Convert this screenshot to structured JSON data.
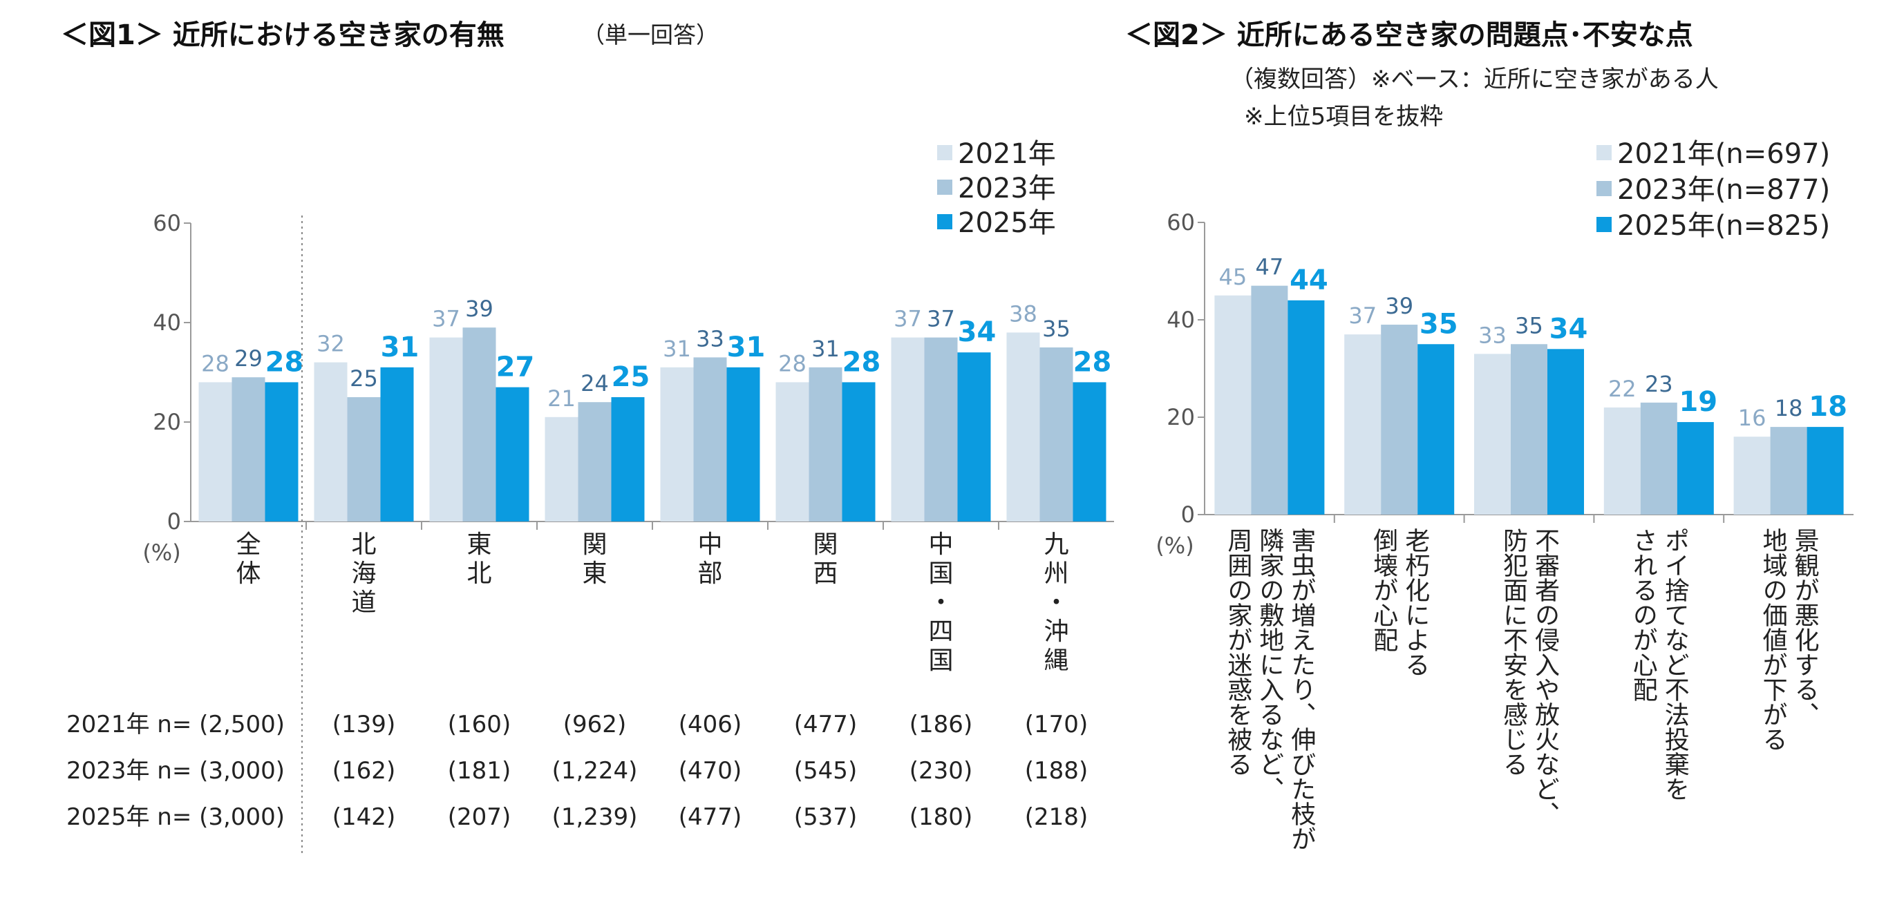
{
  "colors": {
    "y2021": "#d6e3ee",
    "y2023": "#a9c6dc",
    "y2025": "#0b9be0",
    "label2021": "#8aa9c6",
    "label2023": "#3c6a93",
    "label2025": "#0b9be0",
    "axis": "#9a9a9a"
  },
  "chart1": {
    "title_main": "＜図1＞ 近所における空き家の有無",
    "title_sub": "（単一回答）",
    "unit": "(%)",
    "legend": [
      "2021年",
      "2023年",
      "2025年"
    ]
  },
  "chart2": {
    "title_main": "＜図2＞ 近所にある空き家の問題点･不安な点",
    "note1": "（複数回答）※ベース：近所に空き家がある人",
    "note2": "※上位5項目を抜粋",
    "unit": "(%)",
    "legend": [
      "2021年(n=697)",
      "2023年(n=877)",
      "2025年(n=825)"
    ]
  },
  "chart_data": [
    {
      "type": "bar",
      "title": "＜図1＞ 近所における空き家の有無",
      "ylabel": "(%)",
      "ylim": [
        0,
        60
      ],
      "yticks": [
        0,
        20,
        40,
        60
      ],
      "categories": [
        "全体",
        "北海道",
        "東北",
        "関東",
        "中部",
        "関西",
        "中国・四国",
        "九州・沖縄"
      ],
      "category_lines": [
        [
          "全",
          "体"
        ],
        [
          "北",
          "海",
          "道"
        ],
        [
          "東",
          "北"
        ],
        [
          "関",
          "東"
        ],
        [
          "中",
          "部"
        ],
        [
          "関",
          "西"
        ],
        [
          "中",
          "国",
          "・",
          "四",
          "国"
        ],
        [
          "九",
          "州",
          "・",
          "沖",
          "縄"
        ]
      ],
      "series": [
        {
          "name": "2021年",
          "values": [
            28,
            32,
            37,
            21,
            31,
            28,
            37,
            38
          ],
          "n": [
            "(2,500)",
            "(139)",
            "(160)",
            "(962)",
            "(406)",
            "(477)",
            "(186)",
            "(170)"
          ],
          "n_label": "2021年 n="
        },
        {
          "name": "2023年",
          "values": [
            29,
            25,
            39,
            24,
            33,
            31,
            37,
            35
          ],
          "n": [
            "(3,000)",
            "(162)",
            "(181)",
            "(1,224)",
            "(470)",
            "(545)",
            "(230)",
            "(188)"
          ],
          "n_label": "2023年 n="
        },
        {
          "name": "2025年",
          "values": [
            28,
            31,
            27,
            25,
            31,
            28,
            34,
            28
          ],
          "n": [
            "(3,000)",
            "(142)",
            "(207)",
            "(1,239)",
            "(477)",
            "(537)",
            "(180)",
            "(218)"
          ],
          "n_label": "2025年 n="
        }
      ],
      "legend_position": "top-right",
      "grid": false
    },
    {
      "type": "bar",
      "title": "＜図2＞ 近所にある空き家の問題点･不安な点",
      "ylabel": "(%)",
      "ylim": [
        0,
        60
      ],
      "yticks": [
        0,
        20,
        40,
        60
      ],
      "categories": [
        "害虫が増えたり、伸びた枝が隣家の敷地に入るなど、周囲の家が迷惑を被る",
        "老朽化による倒壊が心配",
        "不審者の侵入や放火など、防犯面に不安を感じる",
        "ポイ捨てなど不法投棄をされるのが心配",
        "景観が悪化する、地域の価値が下がる"
      ],
      "category_columns": [
        [
          "害虫が増えたり、伸びた枝が",
          "隣家の敷地に入るなど、",
          "周囲の家が迷惑を被る"
        ],
        [
          "老朽化による",
          "倒壊が心配"
        ],
        [
          "不審者の侵入や放火など、",
          "防犯面に不安を感じる"
        ],
        [
          "ポイ捨てなど不法投棄を",
          "されるのが心配"
        ],
        [
          "景観が悪化する、",
          "地域の価値が下がる"
        ]
      ],
      "series": [
        {
          "name": "2021年(n=697)",
          "values": [
            45,
            37,
            33,
            22,
            16
          ]
        },
        {
          "name": "2023年(n=877)",
          "values": [
            47,
            39,
            35,
            23,
            18
          ]
        },
        {
          "name": "2025年(n=825)",
          "values": [
            44,
            35,
            34,
            19,
            18
          ]
        }
      ],
      "legend_position": "top-right",
      "grid": false
    }
  ]
}
